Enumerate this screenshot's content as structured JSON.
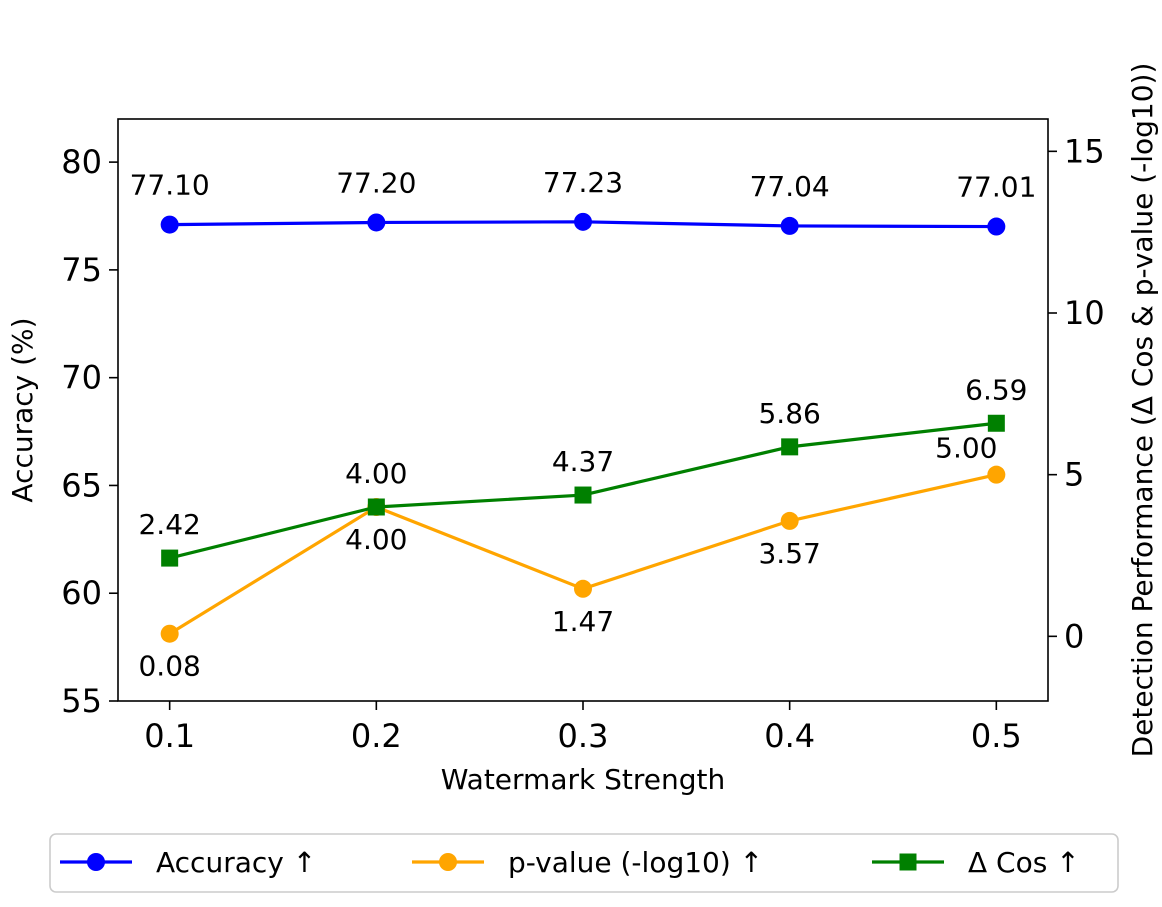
{
  "chart_data": {
    "type": "line",
    "xlabel": "Watermark Strength",
    "ylabel_left": "Accuracy (%)",
    "ylabel_right": "Detection Performance (Δ Cos & p-value (-log10))",
    "x": [
      0.1,
      0.2,
      0.3,
      0.4,
      0.5
    ],
    "x_tick_labels": [
      "0.1",
      "0.2",
      "0.3",
      "0.4",
      "0.5"
    ],
    "ylim_left": [
      55,
      82
    ],
    "y_ticks_left": [
      "55",
      "60",
      "65",
      "70",
      "75",
      "80"
    ],
    "ylim_right": [
      -2,
      16
    ],
    "y_ticks_right": [
      "0",
      "5",
      "10",
      "15"
    ],
    "grid": false,
    "legend_position": "bottom",
    "series": [
      {
        "name": "Accuracy ↑",
        "axis": "left",
        "color": "#0000ff",
        "marker": "circle",
        "values": [
          77.1,
          77.2,
          77.23,
          77.04,
          77.01
        ],
        "labels": [
          "77.10",
          "77.20",
          "77.23",
          "77.04",
          "77.01"
        ]
      },
      {
        "name": "p-value (-log10) ↑",
        "axis": "right",
        "color": "#ffa500",
        "marker": "circle",
        "values": [
          0.08,
          4.0,
          1.47,
          3.57,
          5.0
        ],
        "labels": [
          "0.08",
          "4.00",
          "1.47",
          "3.57",
          "5.00"
        ]
      },
      {
        "name": "Δ Cos ↑",
        "axis": "right",
        "color": "#008000",
        "marker": "square",
        "values": [
          2.42,
          4.0,
          4.37,
          5.86,
          6.59
        ],
        "labels": [
          "2.42",
          "4.00",
          "4.37",
          "5.86",
          "6.59"
        ]
      }
    ]
  }
}
